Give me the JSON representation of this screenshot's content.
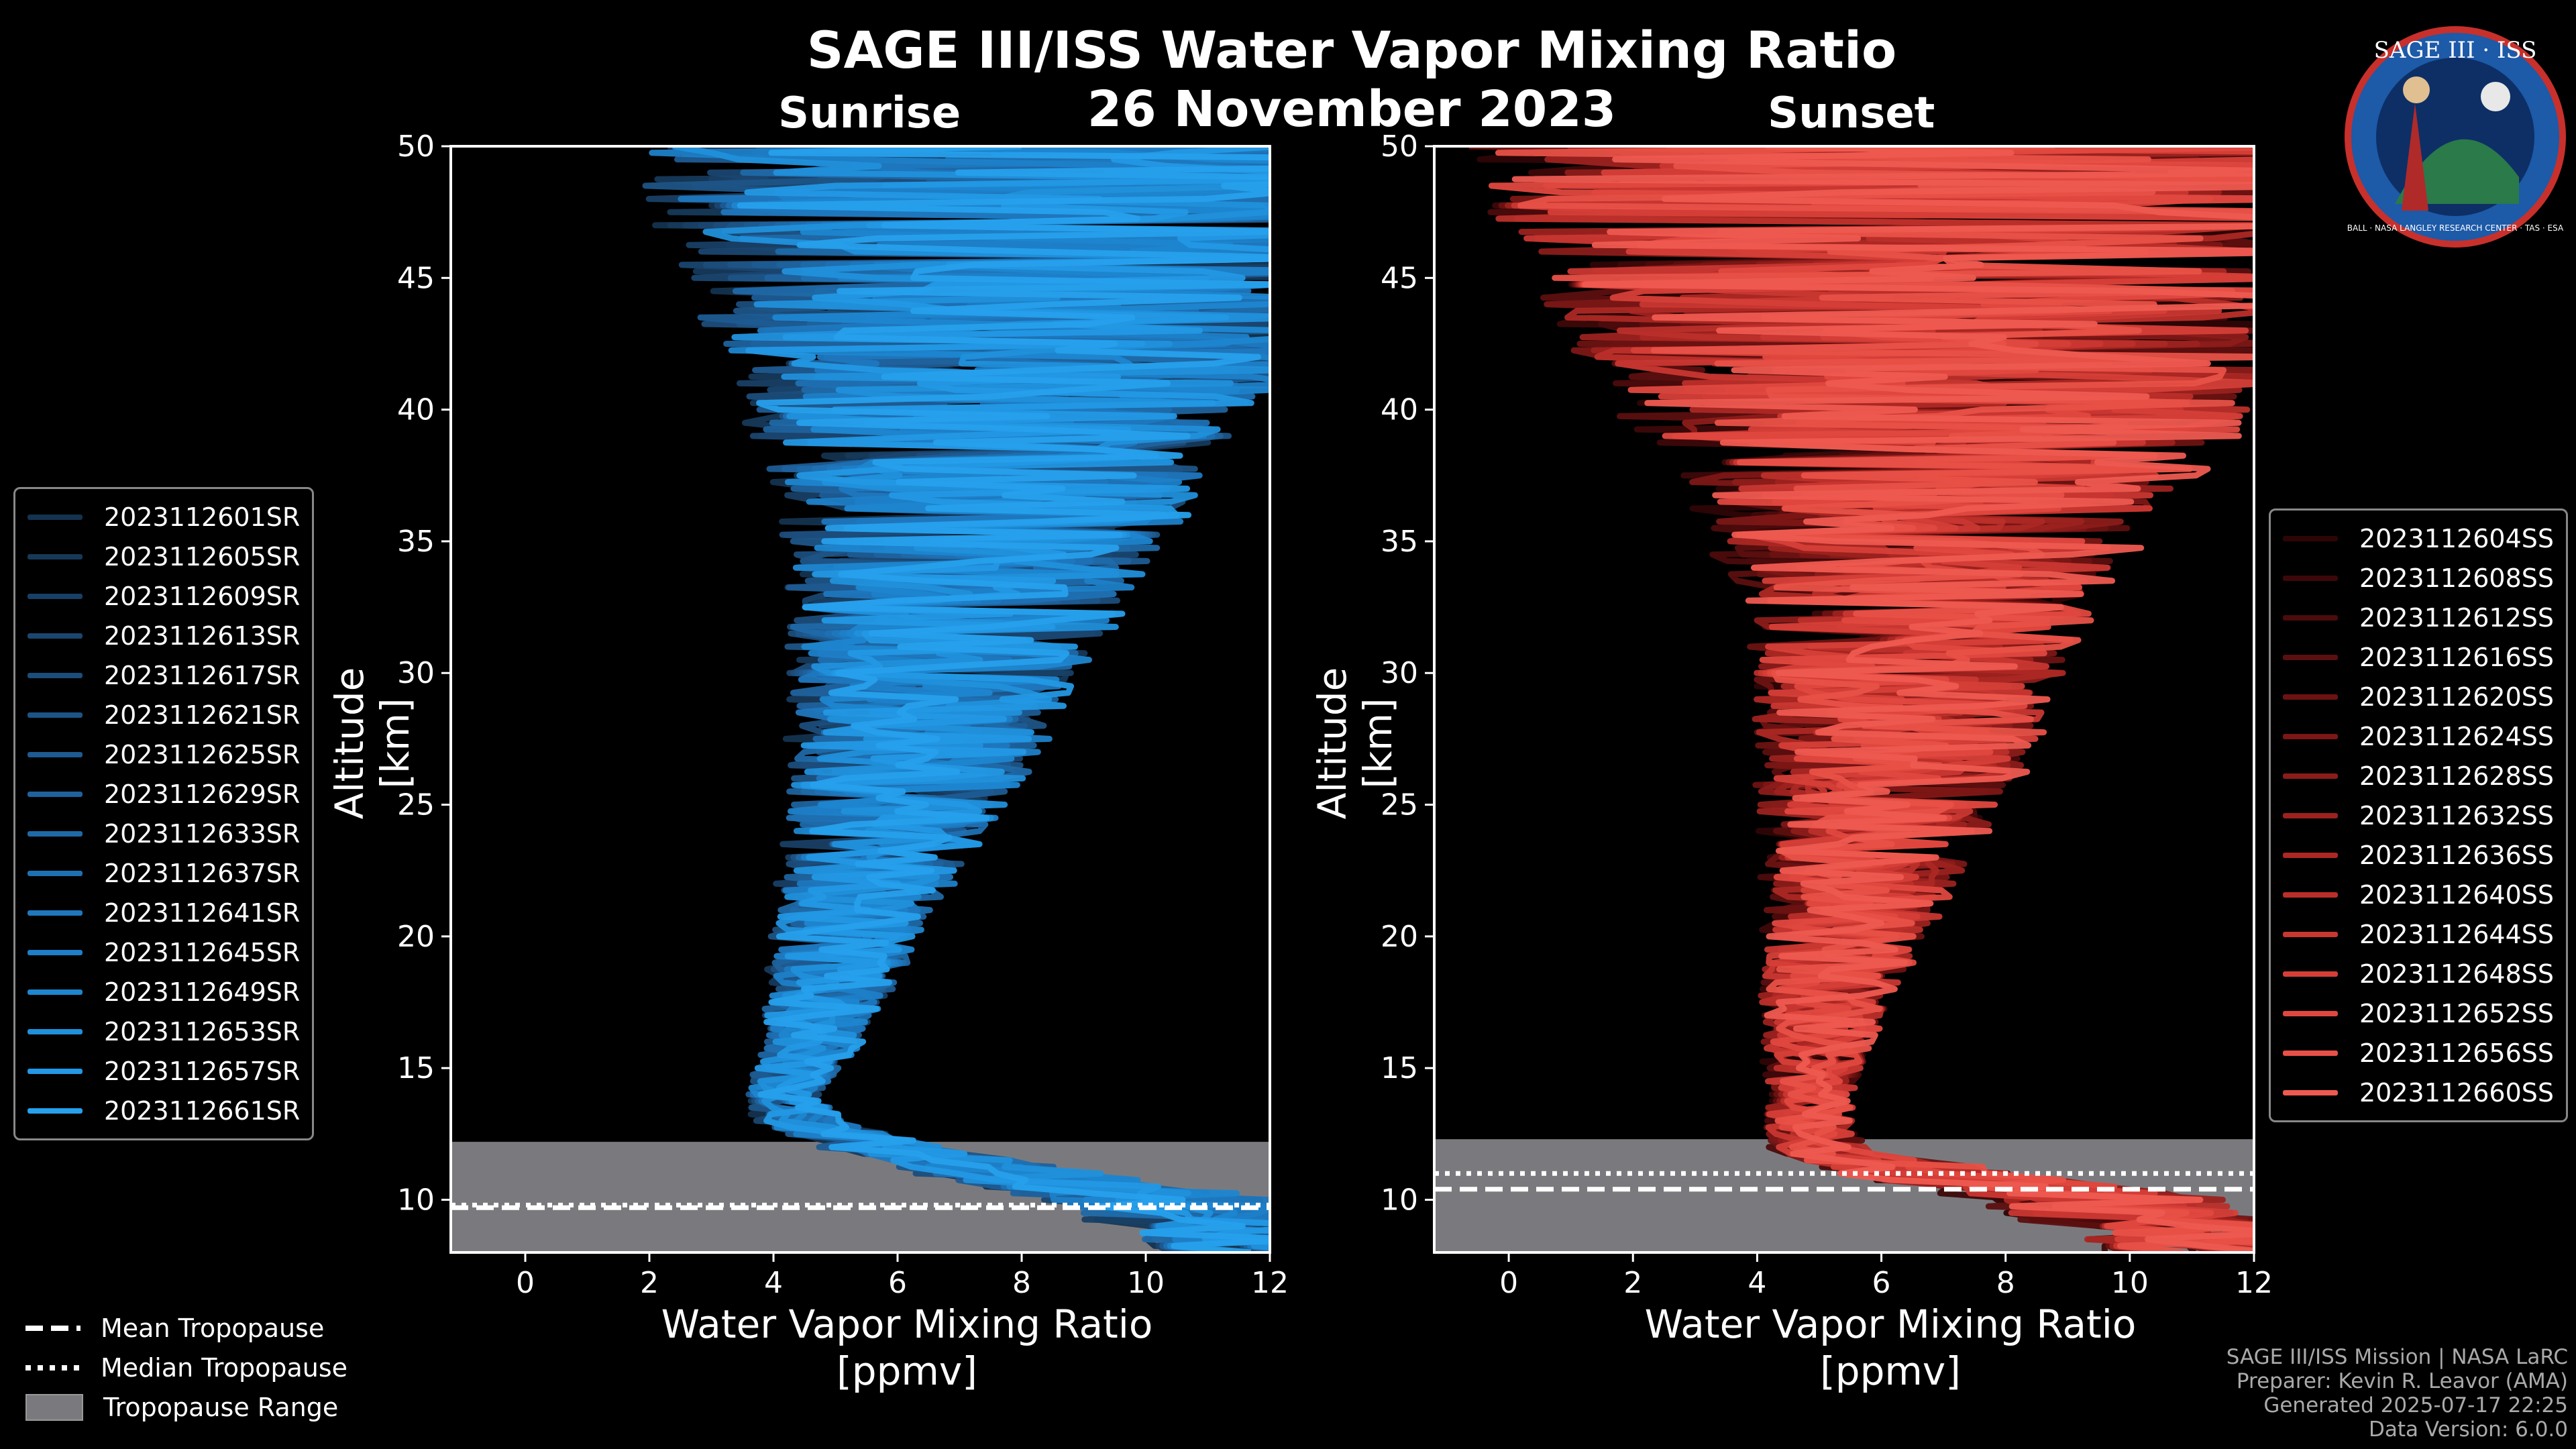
{
  "title": "SAGE III/ISS Water Vapor Mixing Ratio",
  "date": "26 November 2023",
  "panels": {
    "left": {
      "name": "Sunrise",
      "ylabel": "Altitude [km]",
      "xlabel_1": "Water Vapor Mixing Ratio",
      "xlabel_2": "[ppmv]"
    },
    "right": {
      "name": "Sunset",
      "ylabel": "Altitude [km]",
      "xlabel_1": "Water Vapor Mixing Ratio",
      "xlabel_2": "[ppmv]"
    }
  },
  "logo": {
    "text_top": "SAGE III · ISS",
    "text_ring": "BALL · NASA LANGLEY RESEARCH CENTER · TAS · ESA"
  },
  "bottom_legend": {
    "mean": "Mean Tropopause",
    "median": "Median Tropopause",
    "range": "Tropopause Range"
  },
  "footer": {
    "line1": "SAGE III/ISS Mission | NASA LaRC",
    "line2": "Preparer: Kevin R. Leavor (AMA)",
    "line3": "Generated 2025-07-17 22:25",
    "line4": "Data Version: 6.0.0"
  },
  "colors": {
    "sunrise": "#1e88d2",
    "sunset": "#e8524a",
    "tropopause_range": "#7a7a7e"
  },
  "chart_data": [
    {
      "type": "line",
      "title": "Sunrise",
      "xlabel": "Water Vapor Mixing Ratio [ppmv]",
      "ylabel": "Altitude [km]",
      "xlim": [
        -1.2,
        12
      ],
      "ylim": [
        8,
        50
      ],
      "xticks": [
        0,
        2,
        4,
        6,
        8,
        10,
        12
      ],
      "yticks": [
        10,
        15,
        20,
        25,
        30,
        35,
        40,
        45,
        50
      ],
      "series_names": [
        "2023112601SR",
        "2023112605SR",
        "2023112609SR",
        "2023112613SR",
        "2023112617SR",
        "2023112621SR",
        "2023112625SR",
        "2023112629SR",
        "2023112633SR",
        "2023112637SR",
        "2023112641SR",
        "2023112645SR",
        "2023112649SR",
        "2023112653SR",
        "2023112657SR",
        "2023112661SR"
      ],
      "series_colors": [
        "#14334f",
        "#16395a",
        "#183f65",
        "#1a4670",
        "#1c4d7b",
        "#1d5486",
        "#1e5b92",
        "#1f629d",
        "#1f69a8",
        "#1f70b3",
        "#1f77be",
        "#1e7fc8",
        "#1e86d0",
        "#2190db",
        "#2398e4",
        "#27a0ec"
      ],
      "profile_template": {
        "altitude_km": [
          8,
          9,
          10,
          11,
          12,
          13,
          14,
          15,
          16,
          17,
          18,
          19,
          20,
          21,
          22,
          23,
          24,
          25,
          26,
          27,
          28,
          29,
          30,
          31,
          32,
          33,
          34,
          35,
          36,
          37,
          38,
          39,
          40,
          41,
          42,
          43,
          44,
          45,
          46,
          47,
          48,
          49,
          50
        ],
        "median_ppmv": [
          12,
          11,
          10,
          7.5,
          5.5,
          4.3,
          4.1,
          4.3,
          4.5,
          4.6,
          4.8,
          4.9,
          5.0,
          5.1,
          5.3,
          5.5,
          5.6,
          5.7,
          5.9,
          6.0,
          6.1,
          6.2,
          6.3,
          6.4,
          6.5,
          6.6,
          6.7,
          6.8,
          6.9,
          7.0,
          7.0,
          7.1,
          7.1,
          7.2,
          7.2,
          7.3,
          7.3,
          7.4,
          7.4,
          7.5,
          7.5,
          7.6,
          7.6
        ],
        "spread_ppmv": [
          2,
          2,
          2,
          1.5,
          1,
          0.7,
          0.6,
          0.7,
          0.8,
          0.9,
          1.0,
          1.1,
          1.2,
          1.3,
          1.4,
          1.5,
          1.6,
          1.8,
          1.9,
          2.0,
          2.1,
          2.2,
          2.3,
          2.5,
          2.6,
          2.7,
          2.9,
          3.0,
          3.2,
          3.4,
          3.6,
          3.9,
          4.2,
          4.5,
          4.8,
          5.0,
          5.3,
          5.6,
          5.9,
          6.2,
          6.5,
          6.8,
          7.0
        ]
      },
      "mean_tropopause_km": 9.7,
      "median_tropopause_km": 9.8,
      "tropopause_range_km": [
        8,
        12.2
      ]
    },
    {
      "type": "line",
      "title": "Sunset",
      "xlabel": "Water Vapor Mixing Ratio [ppmv]",
      "ylabel": "Altitude [km]",
      "xlim": [
        -1.2,
        12
      ],
      "ylim": [
        8,
        50
      ],
      "xticks": [
        0,
        2,
        4,
        6,
        8,
        10,
        12
      ],
      "yticks": [
        10,
        15,
        20,
        25,
        30,
        35,
        40,
        45,
        50
      ],
      "series_names": [
        "2023112604SS",
        "2023112608SS",
        "2023112612SS",
        "2023112616SS",
        "2023112620SS",
        "2023112624SS",
        "2023112628SS",
        "2023112632SS",
        "2023112636SS",
        "2023112640SS",
        "2023112644SS",
        "2023112648SS",
        "2023112652SS",
        "2023112656SS",
        "2023112660SS"
      ],
      "series_colors": [
        "#2e0506",
        "#3d0809",
        "#4c0b0c",
        "#5c0f0f",
        "#6c1312",
        "#7c1716",
        "#8c1c1a",
        "#9c221f",
        "#ac2824",
        "#bb2f2a",
        "#c93731",
        "#d53f38",
        "#e0483f",
        "#e85147",
        "#ee5a50"
      ],
      "profile_template": {
        "altitude_km": [
          8,
          9,
          10,
          11,
          12,
          13,
          14,
          15,
          16,
          17,
          18,
          19,
          20,
          21,
          22,
          23,
          24,
          25,
          26,
          27,
          28,
          29,
          30,
          31,
          32,
          33,
          34,
          35,
          36,
          37,
          38,
          39,
          40,
          41,
          42,
          43,
          44,
          45,
          46,
          47,
          48,
          49,
          50
        ],
        "median_ppmv": [
          12,
          11,
          10,
          7,
          5.2,
          5.0,
          5.0,
          5.1,
          5.2,
          5.3,
          5.4,
          5.6,
          5.7,
          5.9,
          6.0,
          6.2,
          6.3,
          6.4,
          6.6,
          6.7,
          6.8,
          6.9,
          7.0,
          7.1,
          7.2,
          7.3,
          7.4,
          7.5,
          7.6,
          7.7,
          7.8,
          7.9,
          8.0,
          8.0,
          8.1,
          8.1,
          8.2,
          8.2,
          8.3,
          8.3,
          8.4,
          8.4,
          8.5
        ],
        "spread_ppmv": [
          2,
          2,
          2,
          1.5,
          0.8,
          0.7,
          0.7,
          0.8,
          0.9,
          1.0,
          1.1,
          1.2,
          1.3,
          1.4,
          1.6,
          1.7,
          1.8,
          2.0,
          2.1,
          2.2,
          2.3,
          2.4,
          2.5,
          2.7,
          2.8,
          3.0,
          3.2,
          3.4,
          3.6,
          3.9,
          4.3,
          4.7,
          5.0,
          5.3,
          5.6,
          5.9,
          6.1,
          6.4,
          6.7,
          7.0,
          7.2,
          7.5,
          7.8
        ]
      },
      "mean_tropopause_km": 10.4,
      "median_tropopause_km": 11.0,
      "tropopause_range_km": [
        8,
        12.3
      ]
    }
  ]
}
